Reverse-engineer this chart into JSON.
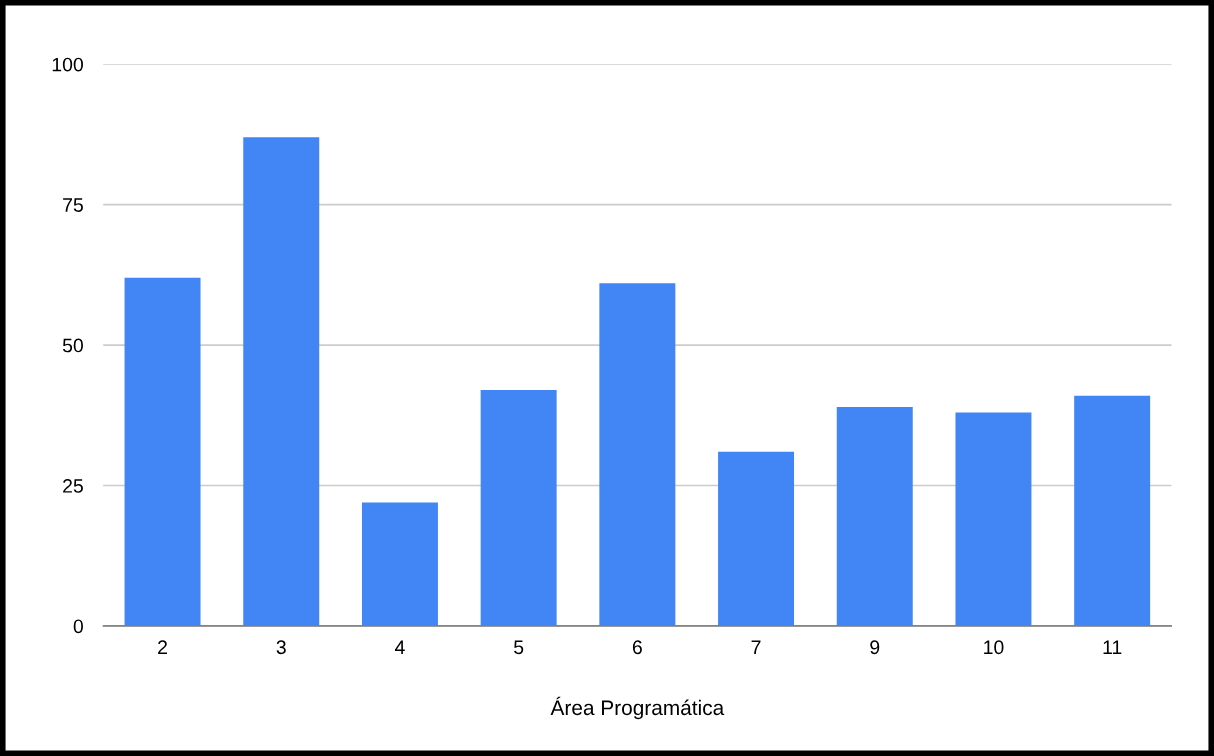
{
  "chart_data": {
    "type": "bar",
    "xlabel": "Área Programática",
    "categories": [
      "2",
      "3",
      "4",
      "5",
      "6",
      "7",
      "9",
      "10",
      "11"
    ],
    "values": [
      62,
      87,
      22,
      42,
      61,
      31,
      39,
      38,
      41
    ],
    "color": "#4285f4",
    "ylim": [
      0,
      100
    ],
    "yticks": [
      0,
      25,
      50,
      75,
      100
    ],
    "grid": "y"
  }
}
